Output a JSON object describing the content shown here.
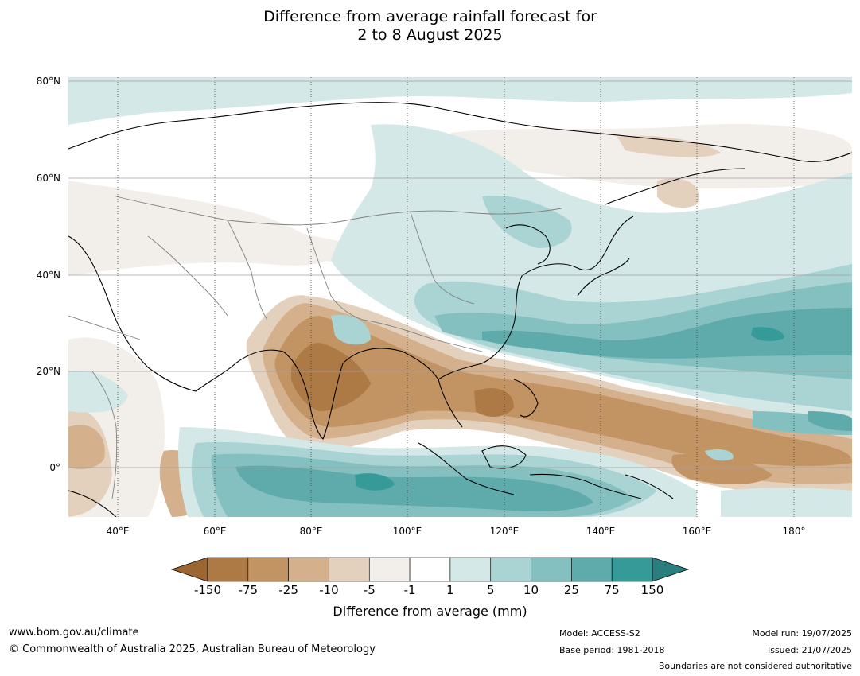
{
  "title": {
    "line1": "Difference from average rainfall forecast for",
    "line2": "2 to 8 August 2025"
  },
  "axes": {
    "lat_labels": [
      "80°N",
      "60°N",
      "40°N",
      "20°N",
      "0°"
    ],
    "lon_labels": [
      "40°E",
      "60°E",
      "80°E",
      "100°E",
      "120°E",
      "140°E",
      "160°E",
      "180°"
    ]
  },
  "colorbar": {
    "title": "Difference from average (mm)",
    "tick_labels": [
      "-150",
      "-75",
      "-25",
      "-10",
      "-5",
      "-1",
      "1",
      "5",
      "10",
      "25",
      "75",
      "150"
    ],
    "colors": [
      "#9c6633",
      "#ad7a45",
      "#c29463",
      "#d4b08c",
      "#e4d1bd",
      "#f2eee9",
      "#ffffff",
      "#d3e8e7",
      "#a9d4d3",
      "#84c0bf",
      "#5fabab",
      "#369a99",
      "#2a7f7e"
    ]
  },
  "footer": {
    "website": "www.bom.gov.au/climate",
    "copyright": "© Commonwealth of Australia 2025, Australian Bureau of Meteorology",
    "model": "Model: ACCESS-S2",
    "base_period": "Base period: 1981-2018",
    "model_run": "Model run: 19/07/2025",
    "issued": "Issued: 21/07/2025",
    "disclaimer": "Boundaries are not considered authoritative"
  }
}
